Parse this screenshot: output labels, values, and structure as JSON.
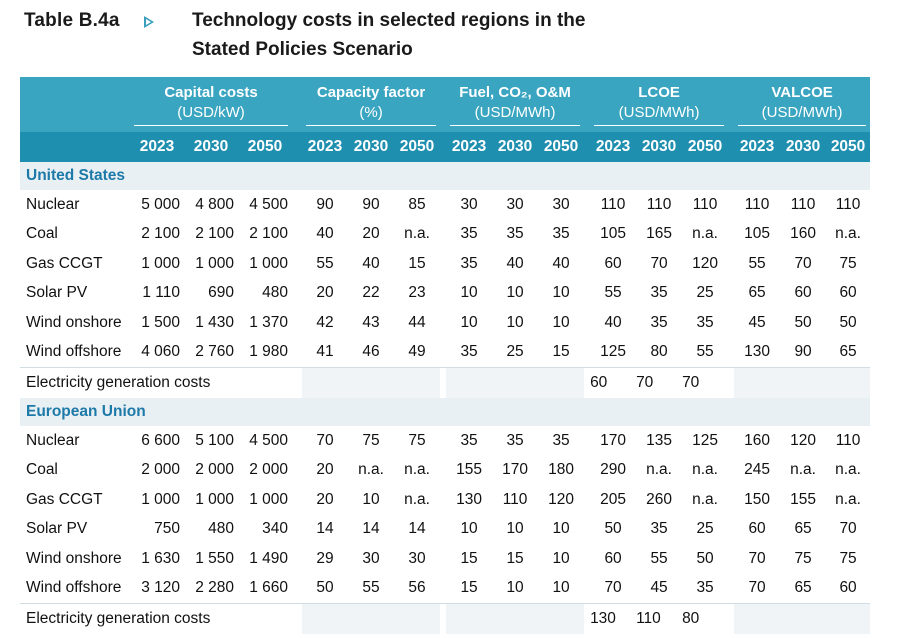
{
  "title": {
    "label": "Table B.4a",
    "line1": "Technology costs in selected regions in the",
    "line2": "Stated Policies Scenario"
  },
  "groups": [
    {
      "name": "Capital costs",
      "unit": "(USD/kW)"
    },
    {
      "name": "Capacity factor",
      "unit": "(%)"
    },
    {
      "name": "Fuel, CO₂, O&M",
      "unit": "(USD/MWh)"
    },
    {
      "name": "LCOE",
      "unit": "(USD/MWh)"
    },
    {
      "name": "VALCOE",
      "unit": "(USD/MWh)"
    }
  ],
  "years": [
    "2023",
    "2030",
    "2050"
  ],
  "regions": [
    {
      "name": "United States",
      "rows": [
        {
          "label": "Nuclear",
          "values": [
            "5 000",
            "4 800",
            "4 500",
            "90",
            "90",
            "85",
            "30",
            "30",
            "30",
            "110",
            "110",
            "110",
            "110",
            "110",
            "110"
          ]
        },
        {
          "label": "Coal",
          "values": [
            "2 100",
            "2 100",
            "2 100",
            "40",
            "20",
            "n.a.",
            "35",
            "35",
            "35",
            "105",
            "165",
            "n.a.",
            "105",
            "160",
            "n.a."
          ]
        },
        {
          "label": "Gas CCGT",
          "values": [
            "1 000",
            "1 000",
            "1 000",
            "55",
            "40",
            "15",
            "35",
            "40",
            "40",
            "60",
            "70",
            "120",
            "55",
            "70",
            "75"
          ]
        },
        {
          "label": "Solar PV",
          "values": [
            "1 110",
            "690",
            "480",
            "20",
            "22",
            "23",
            "10",
            "10",
            "10",
            "55",
            "35",
            "25",
            "65",
            "60",
            "60"
          ]
        },
        {
          "label": "Wind onshore",
          "values": [
            "1 500",
            "1 430",
            "1 370",
            "42",
            "43",
            "44",
            "10",
            "10",
            "10",
            "40",
            "35",
            "35",
            "45",
            "50",
            "50"
          ]
        },
        {
          "label": "Wind offshore",
          "values": [
            "4 060",
            "2 760",
            "1 980",
            "41",
            "46",
            "49",
            "35",
            "25",
            "15",
            "125",
            "80",
            "55",
            "130",
            "90",
            "65"
          ]
        }
      ],
      "total": {
        "label": "Electricity generation costs",
        "values": [
          "60",
          "70",
          "70"
        ]
      }
    },
    {
      "name": "European Union",
      "rows": [
        {
          "label": "Nuclear",
          "values": [
            "6 600",
            "5 100",
            "4 500",
            "70",
            "75",
            "75",
            "35",
            "35",
            "35",
            "170",
            "135",
            "125",
            "160",
            "120",
            "110"
          ]
        },
        {
          "label": "Coal",
          "values": [
            "2 000",
            "2 000",
            "2 000",
            "20",
            "n.a.",
            "n.a.",
            "155",
            "170",
            "180",
            "290",
            "n.a.",
            "n.a.",
            "245",
            "n.a.",
            "n.a."
          ]
        },
        {
          "label": "Gas CCGT",
          "values": [
            "1 000",
            "1 000",
            "1 000",
            "20",
            "10",
            "n.a.",
            "130",
            "110",
            "120",
            "205",
            "260",
            "n.a.",
            "150",
            "155",
            "n.a."
          ]
        },
        {
          "label": "Solar PV",
          "values": [
            "750",
            "480",
            "340",
            "14",
            "14",
            "14",
            "10",
            "10",
            "10",
            "50",
            "35",
            "25",
            "60",
            "65",
            "70"
          ]
        },
        {
          "label": "Wind onshore",
          "values": [
            "1 630",
            "1 550",
            "1 490",
            "29",
            "30",
            "30",
            "15",
            "15",
            "10",
            "60",
            "55",
            "50",
            "70",
            "75",
            "75"
          ]
        },
        {
          "label": "Wind offshore",
          "values": [
            "3 120",
            "2 280",
            "1 660",
            "50",
            "55",
            "56",
            "15",
            "10",
            "10",
            "70",
            "45",
            "35",
            "70",
            "65",
            "60"
          ]
        }
      ],
      "total": {
        "label": "Electricity generation costs",
        "values": [
          "130",
          "110",
          "80"
        ]
      }
    }
  ],
  "colors": {
    "header_light": "#3aa5c1",
    "header_dark": "#1f8fb0",
    "region_text": "#1d79a8",
    "region_bg": "#e8f0f4"
  }
}
